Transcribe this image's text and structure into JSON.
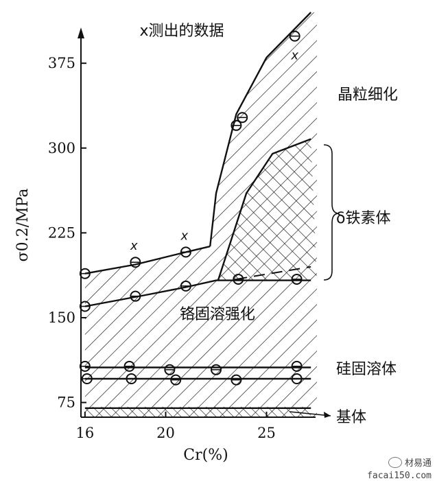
{
  "chart_data": {
    "type": "line",
    "title": "x测出的数据",
    "xlabel": "Cr(%)",
    "ylabel": "σ0.2/MPa",
    "xlim": [
      15.8,
      27.5
    ],
    "ylim": [
      62,
      420
    ],
    "xticks": [
      16,
      20,
      25
    ],
    "yticks": [
      75,
      150,
      225,
      300,
      375
    ],
    "x_marker_label": "x",
    "series": [
      {
        "values": [
          [
            16,
            189
          ],
          [
            18.5,
            197
          ],
          [
            21,
            208
          ],
          [
            22.2,
            213
          ]
        ]
      },
      {
        "values": [
          [
            22.2,
            213
          ],
          [
            22.5,
            260
          ],
          [
            23.5,
            330
          ],
          [
            25,
            380
          ],
          [
            27.2,
            420
          ]
        ]
      },
      {
        "values": [
          [
            16,
            160
          ],
          [
            19,
            170
          ],
          [
            21,
            177
          ],
          [
            22.5,
            183
          ],
          [
            27.2,
            183
          ]
        ]
      },
      {
        "values": [
          [
            22.6,
            183
          ],
          [
            24,
            260
          ],
          [
            25.3,
            295
          ],
          [
            27.2,
            308
          ]
        ]
      },
      {
        "values": [
          [
            16,
            106
          ],
          [
            27.2,
            106
          ]
        ]
      },
      {
        "values": [
          [
            16,
            96
          ],
          [
            27.2,
            96
          ]
        ]
      },
      {
        "values": [
          [
            16,
            70
          ],
          [
            27.2,
            70
          ]
        ]
      }
    ],
    "points": [
      [
        16,
        189
      ],
      [
        18.5,
        199
      ],
      [
        21,
        208
      ],
      [
        16,
        160
      ],
      [
        18.5,
        169
      ],
      [
        21,
        178
      ],
      [
        23.6,
        184
      ],
      [
        26.5,
        184
      ],
      [
        23.5,
        320
      ],
      [
        23.8,
        327
      ],
      [
        26.4,
        399
      ],
      [
        16,
        107
      ],
      [
        18.2,
        107
      ],
      [
        20.2,
        104
      ],
      [
        22.5,
        104
      ],
      [
        26.5,
        107
      ],
      [
        16.1,
        96
      ],
      [
        18.3,
        96
      ],
      [
        20.5,
        95
      ],
      [
        23.5,
        95
      ],
      [
        26.5,
        96
      ]
    ],
    "x_marked_points": [
      [
        18.5,
        199
      ],
      [
        21,
        208
      ],
      [
        26.4,
        399
      ]
    ],
    "regions": {
      "grain_refinement": "晶粒细化",
      "delta_ferrite": "δ铁素体",
      "cr_solid_solution": "铬固溶强化",
      "si_solid_solution": "硅固溶体",
      "matrix": "基体"
    },
    "watermark": "材易通",
    "watermark_url": "facai150.com"
  }
}
